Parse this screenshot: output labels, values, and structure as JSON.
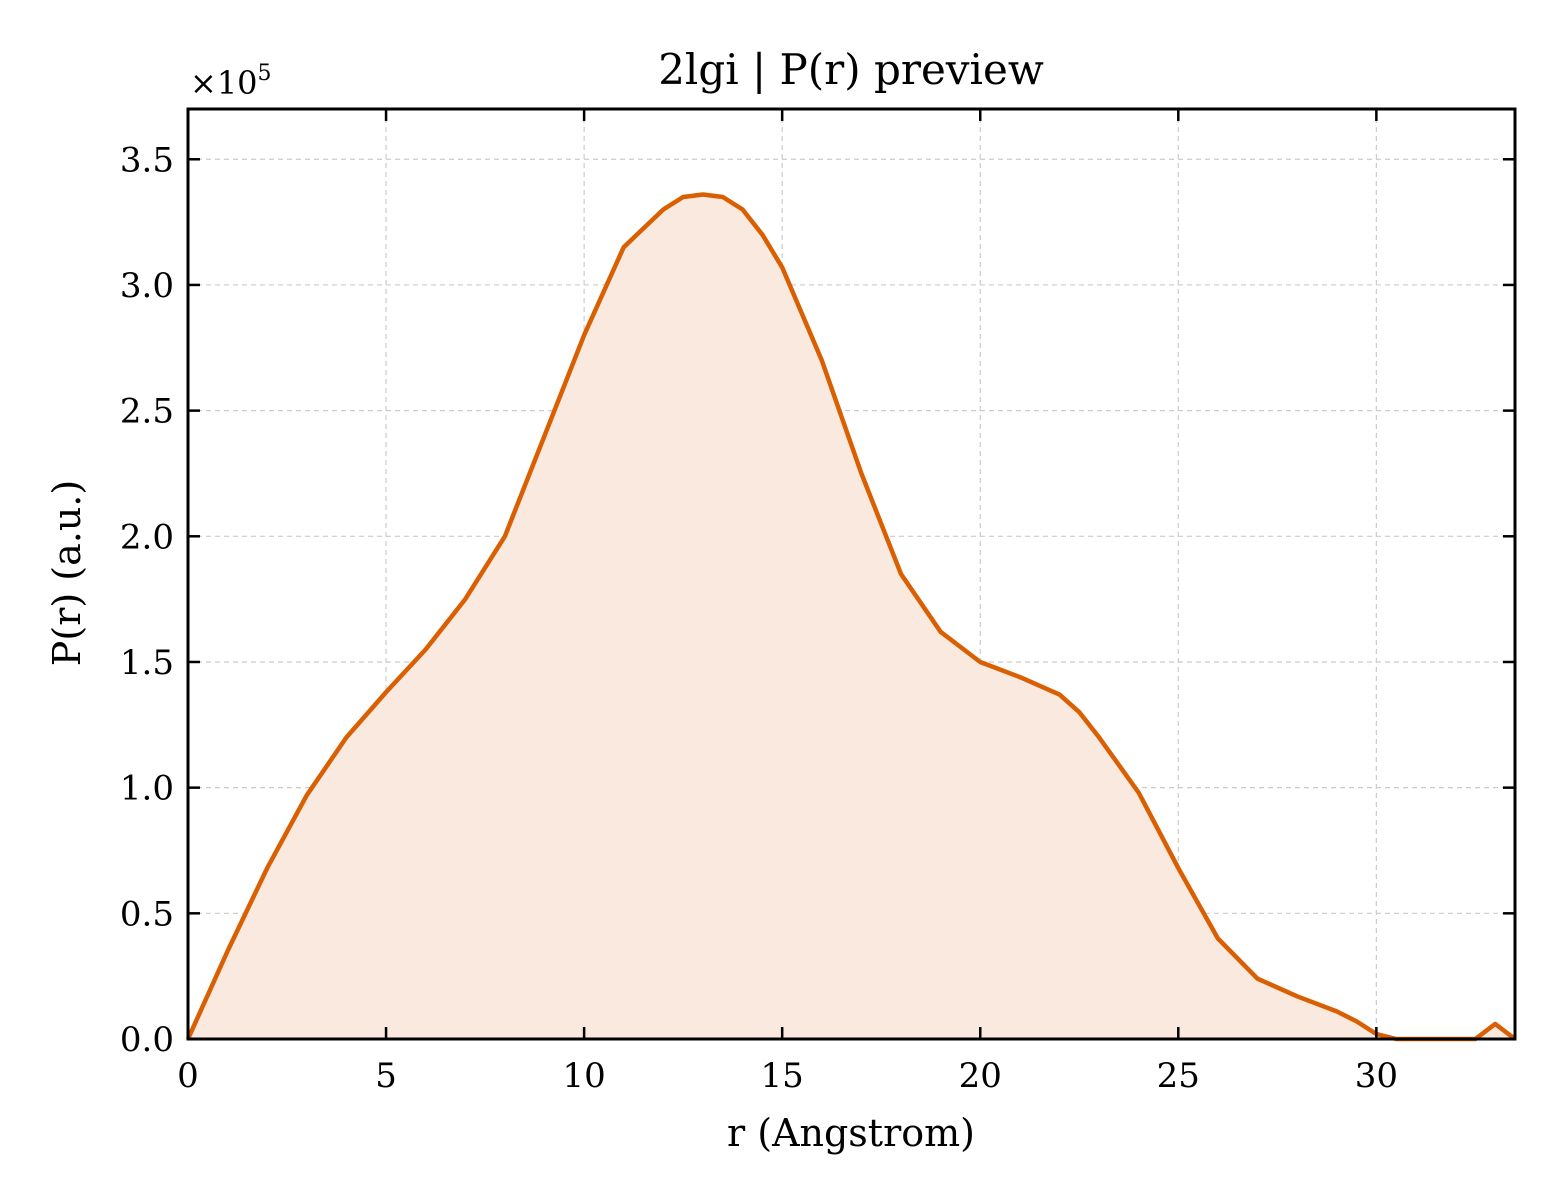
{
  "chart_data": {
    "type": "area",
    "title": "2lgi | P(r) preview",
    "xlabel": "r (Angstrom)",
    "ylabel": "P(r) (a.u.)",
    "y_multiplier_label": "×10",
    "y_multiplier_exponent": "5",
    "xlim": [
      0,
      33.5
    ],
    "ylim": [
      0,
      3.7
    ],
    "y_scale_factor": 100000,
    "grid": true,
    "x_ticks": [
      0,
      5,
      10,
      15,
      20,
      25,
      30
    ],
    "x_tick_labels": [
      "0",
      "5",
      "10",
      "15",
      "20",
      "25",
      "30"
    ],
    "y_ticks": [
      0,
      0.5,
      1.0,
      1.5,
      2.0,
      2.5,
      3.0,
      3.5
    ],
    "y_tick_labels": [
      "0.0",
      "0.5",
      "1.0",
      "1.5",
      "2.0",
      "2.5",
      "3.0",
      "3.5"
    ],
    "series": [
      {
        "line_color": "#d95f02",
        "fill_color": "#f9e9de",
        "x": [
          0,
          1,
          2,
          3,
          4,
          5,
          6,
          7,
          8,
          9,
          10,
          11,
          12,
          12.5,
          13,
          13.5,
          14,
          14.5,
          15,
          16,
          17,
          18,
          19,
          20,
          21,
          22,
          22.5,
          23,
          24,
          25,
          26,
          27,
          28,
          29,
          29.5,
          30,
          30.5,
          31,
          32,
          32.5,
          33,
          33.5
        ],
        "y": [
          0,
          0.35,
          0.68,
          0.97,
          1.2,
          1.38,
          1.55,
          1.75,
          2.0,
          2.4,
          2.8,
          3.15,
          3.3,
          3.35,
          3.36,
          3.35,
          3.3,
          3.2,
          3.07,
          2.7,
          2.25,
          1.85,
          1.62,
          1.5,
          1.44,
          1.37,
          1.3,
          1.2,
          0.98,
          0.68,
          0.4,
          0.24,
          0.17,
          0.11,
          0.07,
          0.02,
          0.0,
          0.0,
          0.0,
          0.0,
          0.06,
          0.0
        ]
      }
    ]
  }
}
